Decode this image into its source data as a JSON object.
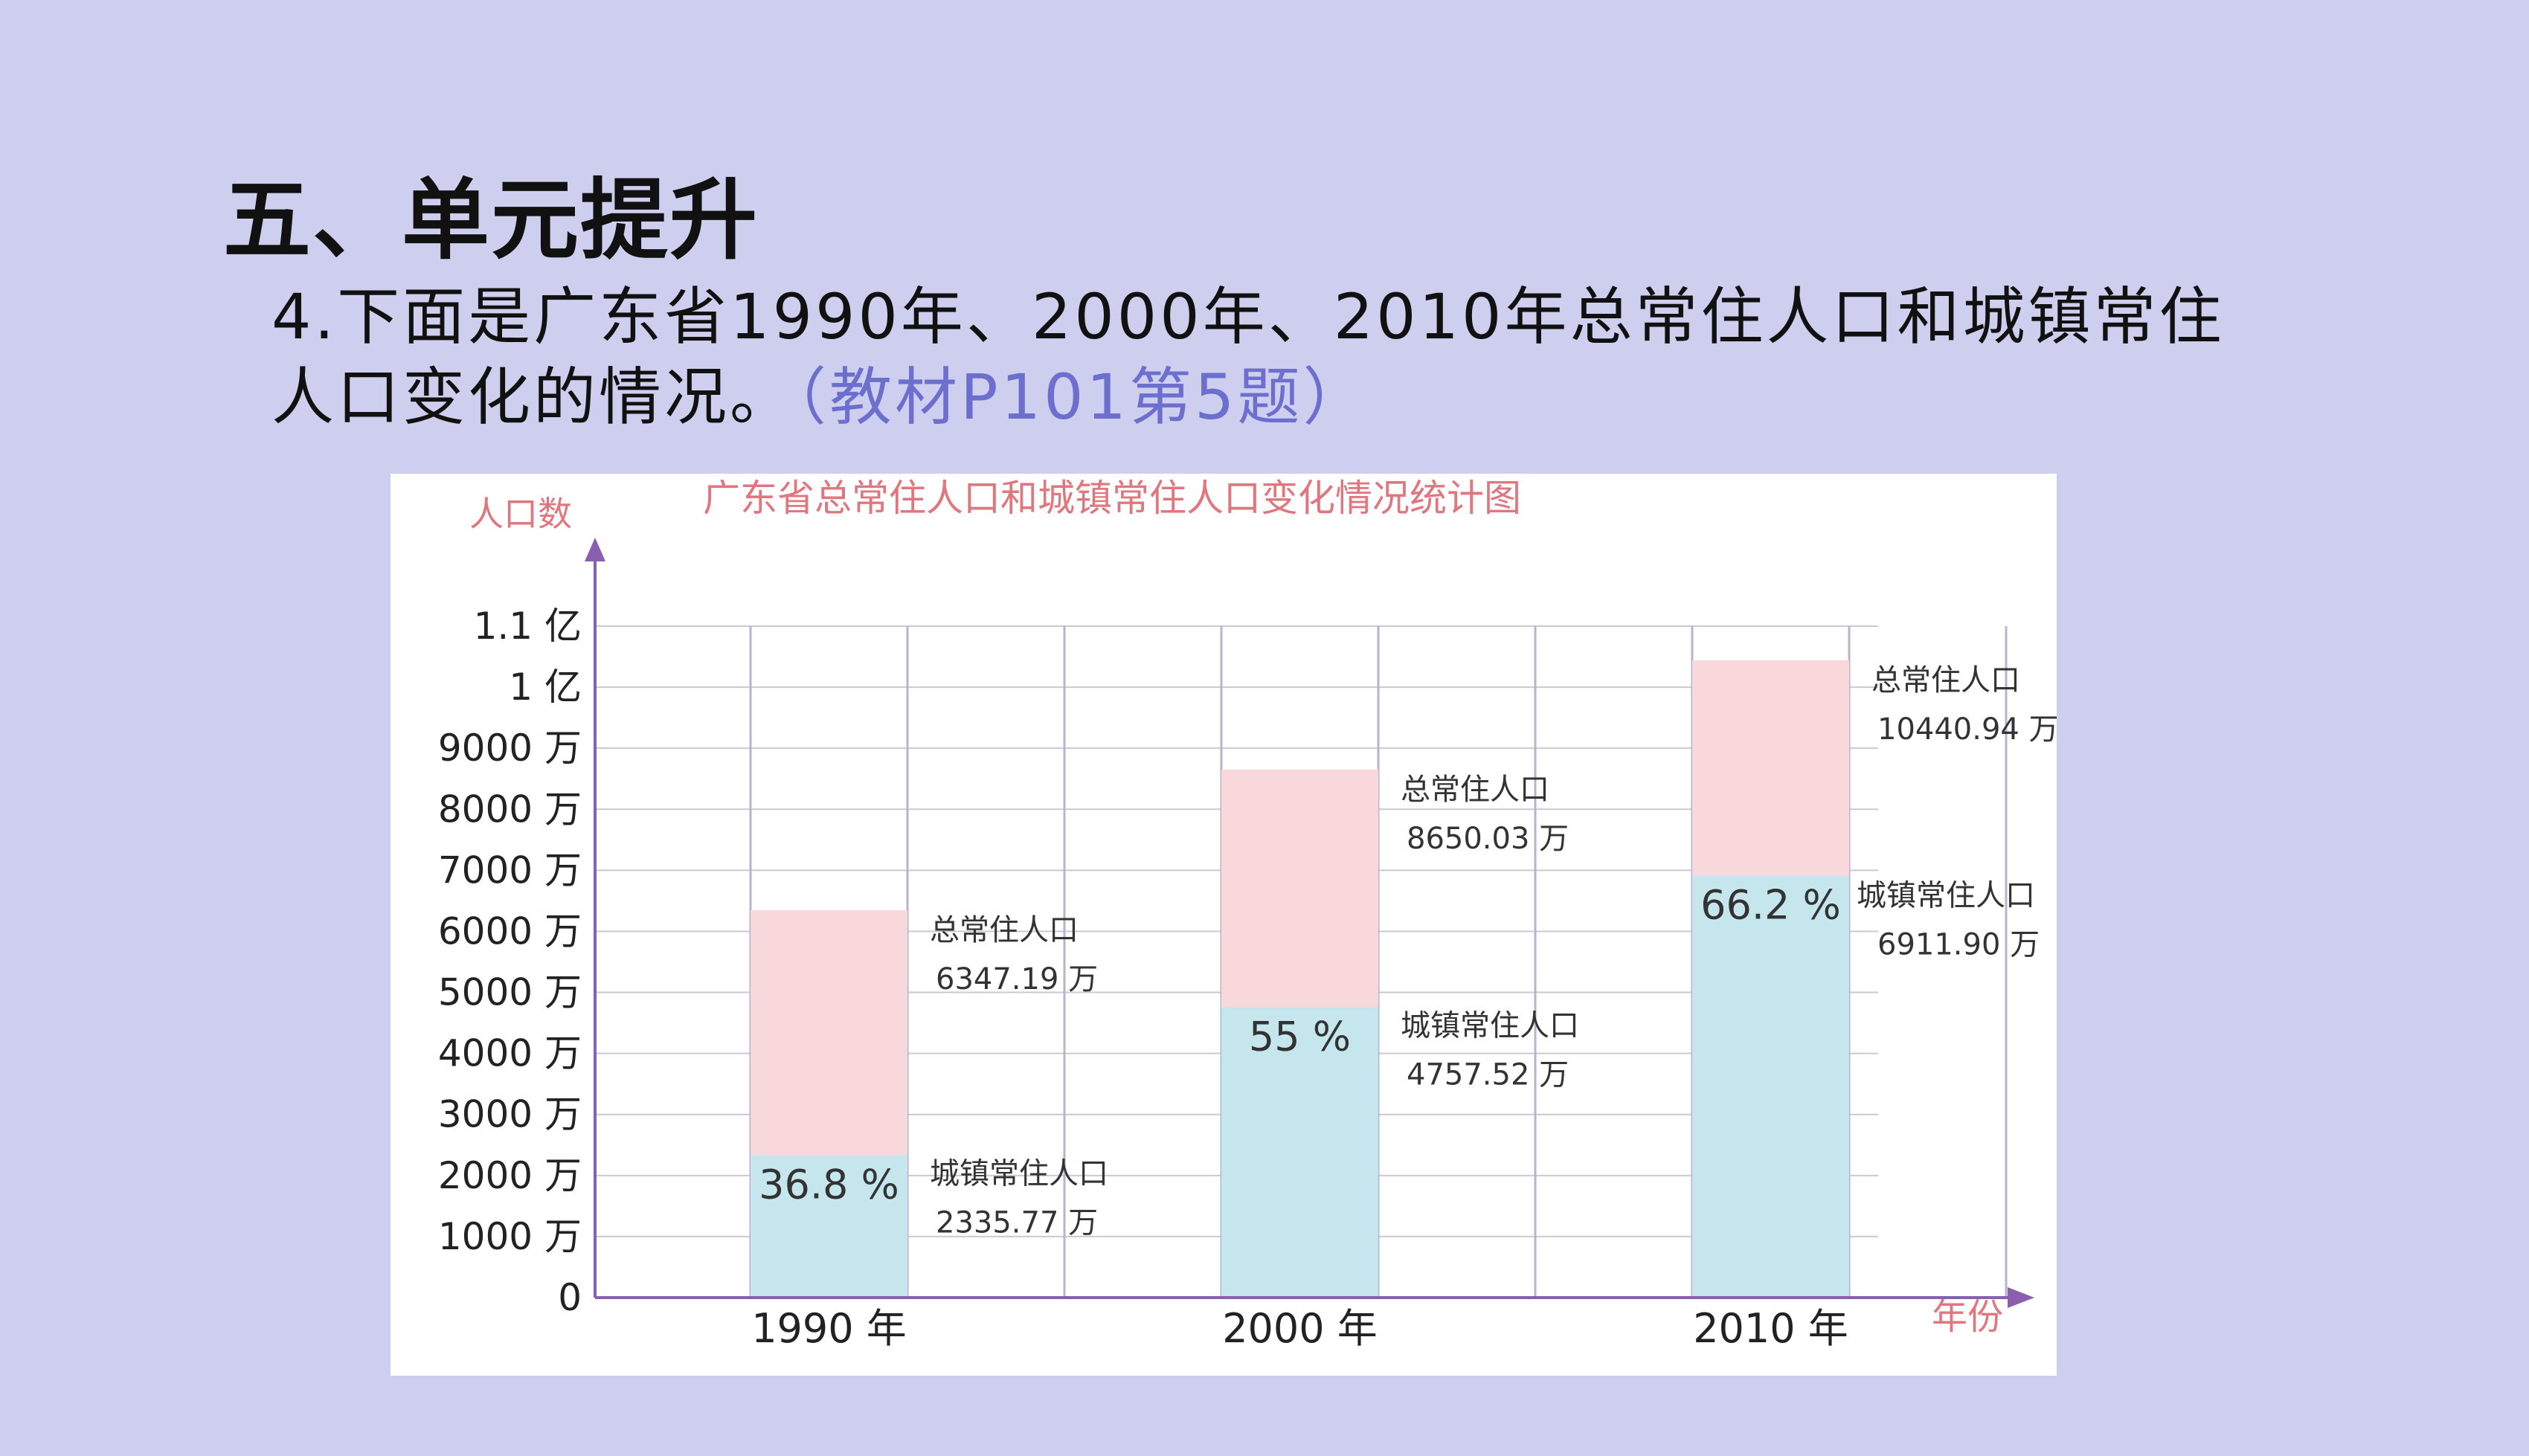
{
  "slide": {
    "section_title": "五、单元提升",
    "question_line1": "4.下面是广东省1990年、2000年、2010年总常住人口和城镇常住",
    "question_line2": "人口变化的情况。",
    "question_ref": "（教材P101第5题）"
  },
  "chart_data": {
    "type": "bar",
    "title": "广东省总常住人口和城镇常住人口变化情况统计图",
    "ylabel": "人口数",
    "xlabel": "年份",
    "ylim": [
      0,
      11000
    ],
    "categories": [
      "1990 年",
      "2000 年",
      "2010 年"
    ],
    "y_ticks": [
      {
        "value": 0,
        "label": "0"
      },
      {
        "value": 1000,
        "label": "1000 万"
      },
      {
        "value": 2000,
        "label": "2000 万"
      },
      {
        "value": 3000,
        "label": "3000 万"
      },
      {
        "value": 4000,
        "label": "4000 万"
      },
      {
        "value": 5000,
        "label": "5000 万"
      },
      {
        "value": 6000,
        "label": "6000 万"
      },
      {
        "value": 7000,
        "label": "7000 万"
      },
      {
        "value": 8000,
        "label": "8000 万"
      },
      {
        "value": 9000,
        "label": "9000 万"
      },
      {
        "value": 10000,
        "label": "1 亿"
      },
      {
        "value": 11000,
        "label": "1.1 亿"
      }
    ],
    "grid": true,
    "series": [
      {
        "name": "总常住人口",
        "values": [
          6347.19,
          8650.03,
          10440.94
        ],
        "labels": [
          "6347.19 万",
          "8650.03 万",
          "10440.94 万"
        ],
        "color": "#f9d8dc"
      },
      {
        "name": "城镇常住人口",
        "values": [
          2335.77,
          4757.52,
          6911.9
        ],
        "labels": [
          "2335.77 万",
          "4757.52 万",
          "6911.90 万"
        ],
        "color": "#c4e6ec"
      }
    ],
    "percent_labels": [
      "36.8 %",
      "55 %",
      "66.2 %"
    ]
  }
}
